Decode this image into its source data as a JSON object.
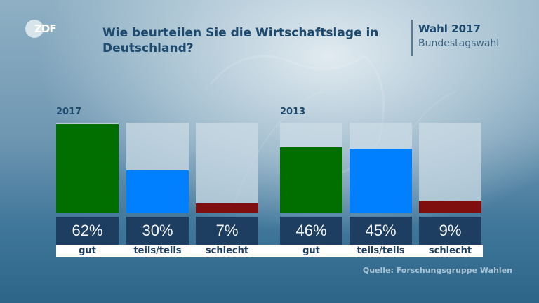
{
  "header": {
    "logo_text": "ZDF",
    "title_line1": "Wie beurteilen Sie die Wirtschaftslage in",
    "title_line2": "Deutschland?",
    "badge_title": "Wahl 2017",
    "badge_subtitle": "Bundestagswahl"
  },
  "footer": {
    "source": "Quelle: Forschungsgruppe Wahlen"
  },
  "colors": {
    "gut": "#006f00",
    "teils": "#0080ff",
    "schlecht": "#7f0e0e",
    "value_box": "#1e3e61",
    "title": "#1d4a6e"
  },
  "chart_data": [
    {
      "type": "bar",
      "title": "2017",
      "question": "Wie beurteilen Sie die Wirtschaftslage in Deutschland?",
      "categories": [
        "gut",
        "teils/teils",
        "schlecht"
      ],
      "values": [
        62,
        30,
        7
      ],
      "value_labels": [
        "62%",
        "30%",
        "7%"
      ],
      "ylim": [
        0,
        63
      ],
      "unit": "%",
      "grid": false
    },
    {
      "type": "bar",
      "title": "2013",
      "question": "Wie beurteilen Sie die Wirtschaftslage in Deutschland?",
      "categories": [
        "gut",
        "teils/teils",
        "schlecht"
      ],
      "values": [
        46,
        45,
        9
      ],
      "value_labels": [
        "46%",
        "45%",
        "9%"
      ],
      "ylim": [
        0,
        63
      ],
      "unit": "%",
      "grid": false
    }
  ]
}
